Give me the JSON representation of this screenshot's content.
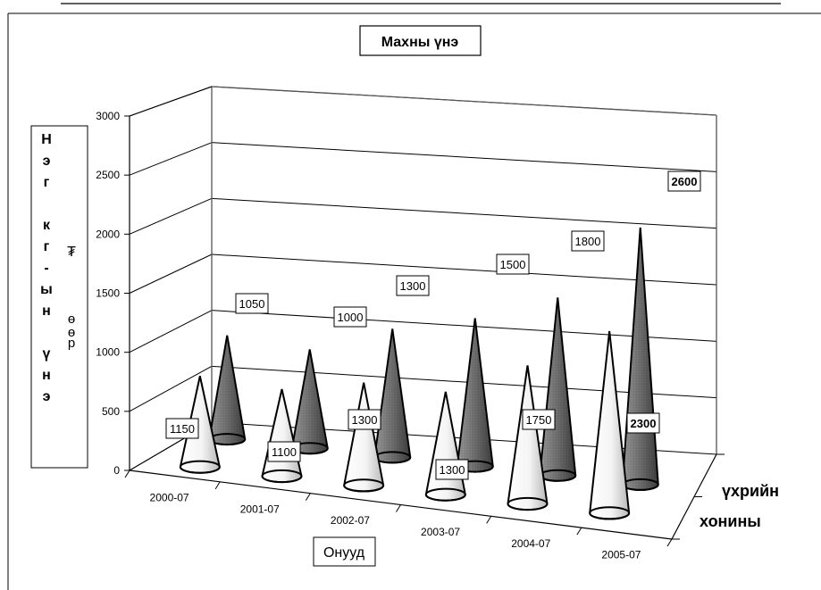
{
  "chart_data": {
    "type": "bar",
    "title": "Махны үнэ",
    "ylabel_left": "Нэг кг-ын үнэ",
    "ylabel_unit": "₮ өөр",
    "xlabel": "Онууд",
    "ylim": [
      0,
      3000
    ],
    "yticks": [
      0,
      500,
      1000,
      1500,
      2000,
      2500,
      3000
    ],
    "grid": true,
    "categories": [
      "2000-07",
      "2001-07",
      "2002-07",
      "2003-07",
      "2004-07",
      "2005-07"
    ],
    "series": [
      {
        "name": "хонины",
        "values": [
          1150,
          1100,
          1300,
          1300,
          1750,
          2300
        ],
        "color": "#e6e6e6"
      },
      {
        "name": "үхрийн",
        "values": [
          1050,
          1000,
          1300,
          1500,
          1800,
          2600
        ],
        "color": "#7a7a7a"
      }
    ]
  }
}
